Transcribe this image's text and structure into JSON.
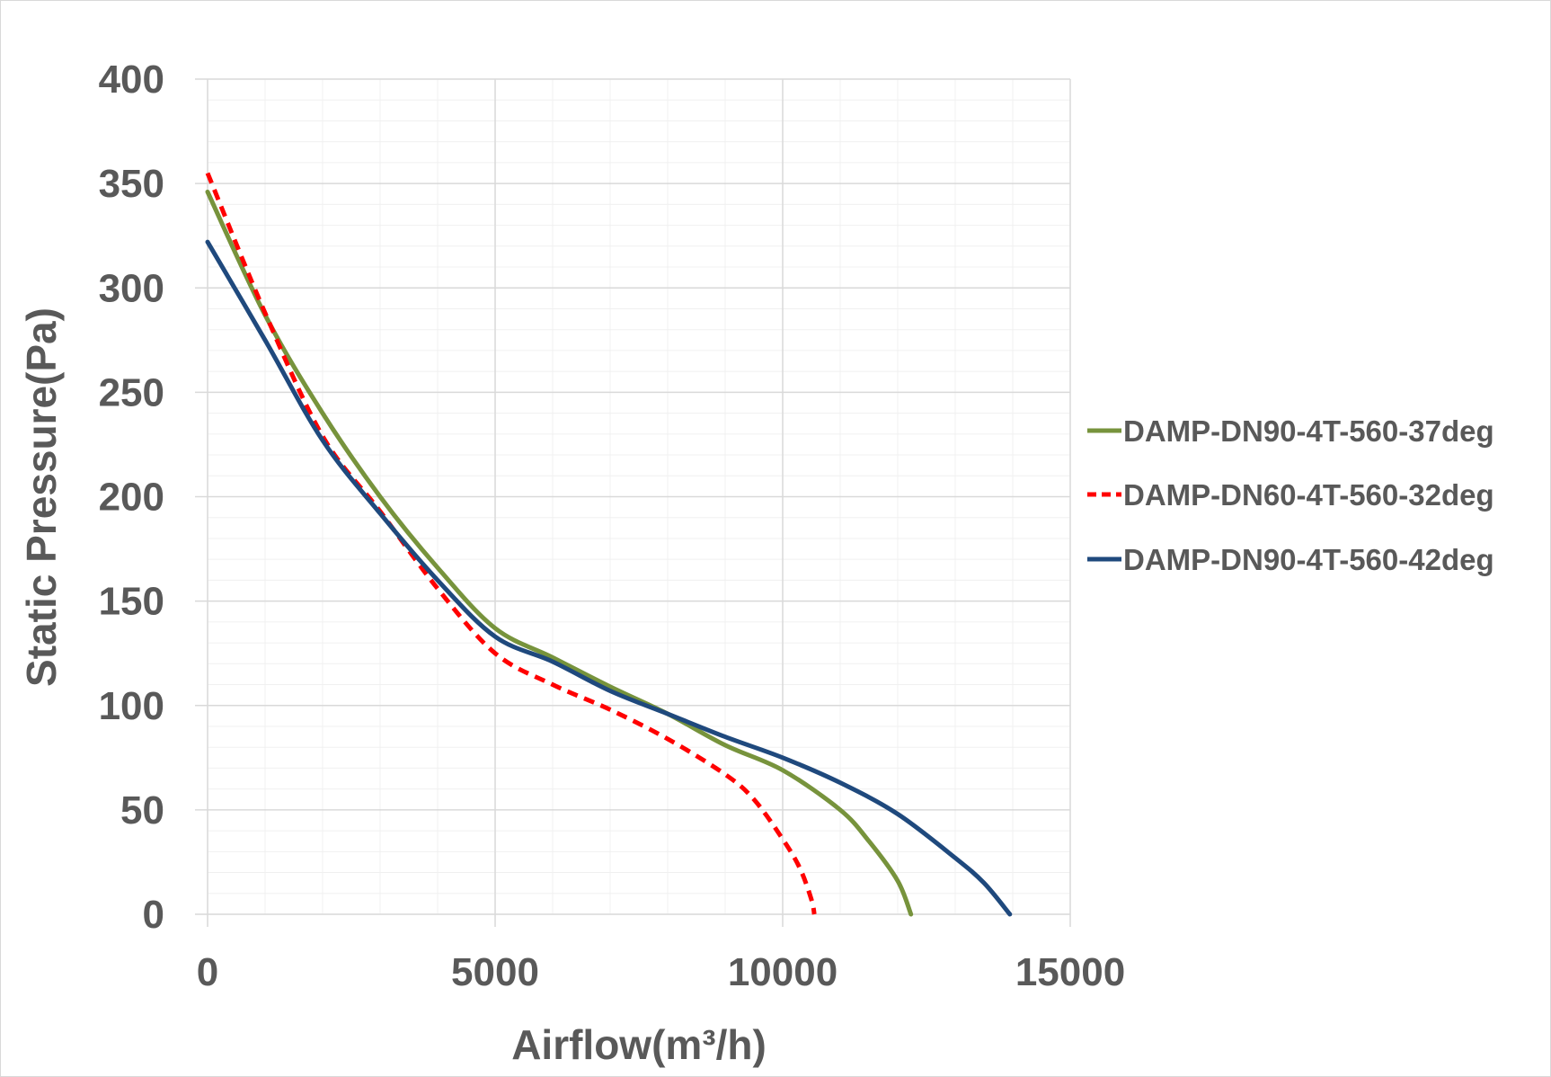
{
  "chart_data": {
    "type": "line",
    "title": "",
    "xlabel": "Airflow(m³/h)",
    "ylabel": "Static Pressure(Pa)",
    "xlim": [
      0,
      15000
    ],
    "ylim": [
      0,
      400
    ],
    "xticks": [
      "0",
      "5000",
      "10000",
      "15000"
    ],
    "yticks": [
      "0",
      "50",
      "100",
      "150",
      "200",
      "250",
      "300",
      "350",
      "400"
    ],
    "grid": {
      "major": true,
      "minor": true
    },
    "legend_position": "right",
    "series": [
      {
        "name": "DAMP-DN90-4T-560-37deg",
        "color": "#77933c",
        "style": "solid",
        "x": [
          0,
          1000,
          2000,
          3000,
          4000,
          5000,
          6000,
          7000,
          8000,
          9000,
          10000,
          11000,
          11500,
          12000,
          12230
        ],
        "y": [
          346,
          287,
          240,
          200,
          166,
          137,
          123,
          109,
          96,
          81,
          69,
          50,
          35,
          16,
          0
        ]
      },
      {
        "name": "DAMP-DN60-4T-560-32deg",
        "color": "#ff0000",
        "style": "dashed",
        "x": [
          0,
          1000,
          2000,
          3000,
          4000,
          5000,
          6000,
          7000,
          8000,
          9000,
          9500,
          10000,
          10300,
          10500,
          10550
        ],
        "y": [
          355,
          288,
          229,
          193,
          156,
          125,
          110,
          98,
          84,
          67,
          55,
          36,
          22,
          7,
          0
        ]
      },
      {
        "name": "DAMP-DN90-4T-560-42deg",
        "color": "#1f497d",
        "style": "solid",
        "x": [
          0,
          1000,
          2000,
          3000,
          4000,
          5000,
          6000,
          7000,
          8000,
          9000,
          10000,
          11000,
          12000,
          13000,
          13500,
          13950
        ],
        "y": [
          322,
          275,
          227,
          192,
          160,
          133,
          121,
          107,
          96,
          85,
          75,
          63,
          48,
          27,
          15,
          0
        ]
      }
    ]
  }
}
